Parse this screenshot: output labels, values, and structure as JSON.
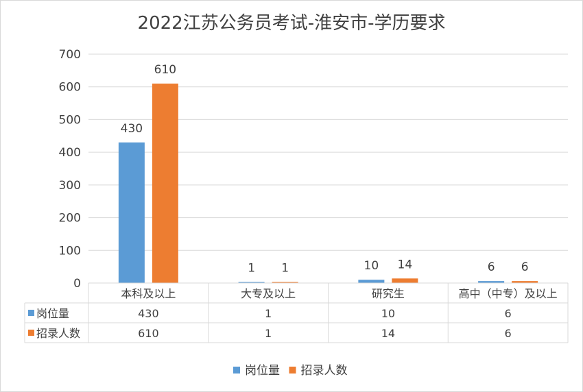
{
  "chart_data": {
    "type": "bar",
    "title": "2022江苏公务员考试-淮安市-学历要求",
    "categories": [
      "本科及以上",
      "大专及以上",
      "研究生",
      "高中（中专）及以上"
    ],
    "series": [
      {
        "name": "岗位量",
        "values": [
          430,
          1,
          10,
          6
        ],
        "color": "#5B9BD5"
      },
      {
        "name": "招录人数",
        "values": [
          610,
          1,
          14,
          6
        ],
        "color": "#ED7D31"
      }
    ],
    "ylim": [
      0,
      700
    ],
    "yticks": [
      0,
      100,
      200,
      300,
      400,
      500,
      600,
      700
    ],
    "grid": true,
    "data_table": true,
    "legend_position": "bottom"
  }
}
